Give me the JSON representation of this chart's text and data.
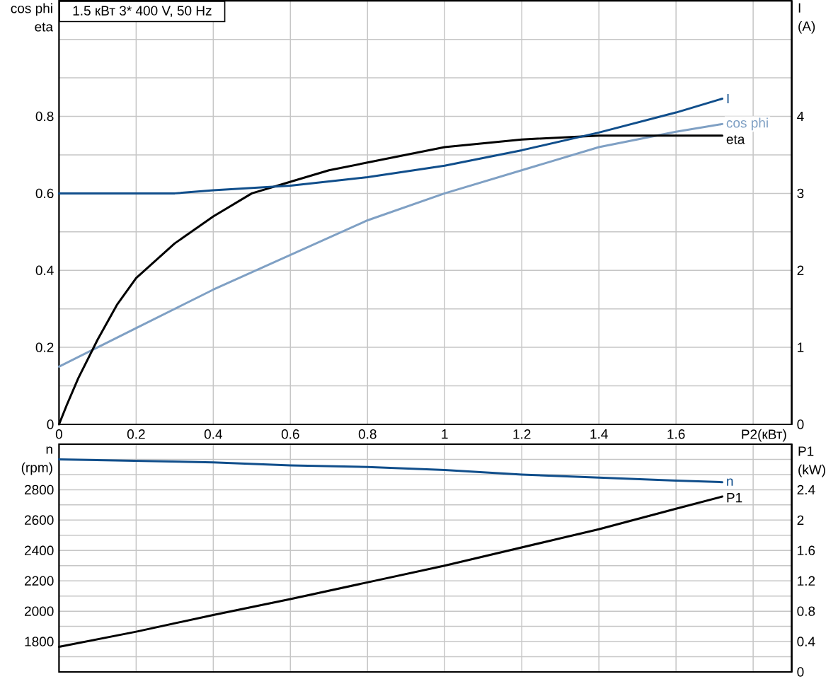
{
  "chart_data": [
    {
      "type": "line",
      "title": "1.5 кВт 3* 400 V, 50 Hz",
      "xlabel": "P2(кВт)",
      "ylabel": "cos phi eta",
      "y2label": "I (A)",
      "xlim": [
        0,
        1.9
      ],
      "xticks": [
        0,
        0.2,
        0.4,
        0.6,
        0.8,
        1,
        1.2,
        1.4,
        1.6,
        {
          "value": 1.8,
          "label": null
        }
      ],
      "ylim": [
        0,
        1.1
      ],
      "yticks": [
        0,
        {
          "value": 0.1,
          "label": null
        },
        0.2,
        {
          "value": 0.3,
          "label": null
        },
        0.4,
        {
          "value": 0.5,
          "label": null
        },
        0.6,
        {
          "value": 0.7,
          "label": null
        },
        0.8,
        {
          "value": 0.9,
          "label": null
        },
        {
          "value": 1,
          "label": null
        }
      ],
      "y2lim": [
        0,
        5.5
      ],
      "y2ticks": [
        0,
        1,
        2,
        3,
        4
      ],
      "grid": true,
      "series": [
        {
          "name": "I",
          "color": "#104e8b",
          "axis": "y2",
          "x": [
            0,
            0.2,
            0.3,
            0.4,
            0.6,
            0.8,
            1.0,
            1.2,
            1.4,
            1.6,
            1.72
          ],
          "values": [
            3.0,
            3.0,
            3.0,
            3.04,
            3.1,
            3.21,
            3.36,
            3.56,
            3.79,
            4.05,
            4.23
          ]
        },
        {
          "name": "cos phi",
          "color": "#7fa0c4",
          "x": [
            0,
            0.1,
            0.2,
            0.4,
            0.6,
            0.8,
            1.0,
            1.2,
            1.4,
            1.6,
            1.72
          ],
          "values": [
            0.15,
            0.2,
            0.25,
            0.35,
            0.44,
            0.53,
            0.6,
            0.66,
            0.72,
            0.76,
            0.78
          ]
        },
        {
          "name": "eta",
          "color": "#000000",
          "x": [
            0,
            0.02,
            0.05,
            0.1,
            0.15,
            0.2,
            0.3,
            0.4,
            0.5,
            0.6,
            0.7,
            0.8,
            0.9,
            1.0,
            1.2,
            1.4,
            1.6,
            1.72
          ],
          "values": [
            0,
            0.05,
            0.12,
            0.22,
            0.31,
            0.38,
            0.47,
            0.54,
            0.6,
            0.63,
            0.66,
            0.68,
            0.7,
            0.72,
            0.74,
            0.75,
            0.75,
            0.75
          ]
        }
      ]
    },
    {
      "type": "line",
      "ylabel": "n (rpm)",
      "y2label": "P1 (kW)",
      "xlim": [
        0,
        1.9
      ],
      "xticks": [
        0,
        0.2,
        0.4,
        0.6,
        0.8,
        1,
        1.2,
        1.4,
        1.6,
        1.8
      ],
      "ylim": [
        1600,
        3100
      ],
      "yticks": [
        {
          "value": 1600,
          "label": null
        },
        {
          "value": 1700,
          "label": null
        },
        1800,
        {
          "value": 1900,
          "label": null
        },
        2000,
        {
          "value": 2100,
          "label": null
        },
        2200,
        {
          "value": 2300,
          "label": null
        },
        2400,
        {
          "value": 2500,
          "label": null
        },
        2600,
        {
          "value": 2700,
          "label": null
        },
        2800,
        {
          "value": 2900,
          "label": null
        },
        {
          "value": 3000,
          "label": null
        }
      ],
      "y2lim": [
        0,
        3
      ],
      "y2ticks": [
        0,
        0.4,
        0.8,
        1.2,
        1.6,
        2,
        2.4
      ],
      "tick_labels": "y",
      "grid": true,
      "series": [
        {
          "name": "n",
          "color": "#104e8b",
          "x": [
            0,
            0.2,
            0.4,
            0.6,
            0.8,
            1.0,
            1.2,
            1.4,
            1.6,
            1.72
          ],
          "values": [
            3000,
            2990,
            2980,
            2960,
            2950,
            2930,
            2900,
            2880,
            2860,
            2850
          ]
        },
        {
          "name": "P1",
          "color": "#000000",
          "axis": "y2",
          "x": [
            0,
            0.2,
            0.4,
            0.6,
            0.8,
            1.0,
            1.2,
            1.4,
            1.6,
            1.72
          ],
          "values": [
            0.33,
            0.53,
            0.75,
            0.96,
            1.18,
            1.4,
            1.64,
            1.88,
            2.15,
            2.31
          ]
        }
      ]
    }
  ]
}
